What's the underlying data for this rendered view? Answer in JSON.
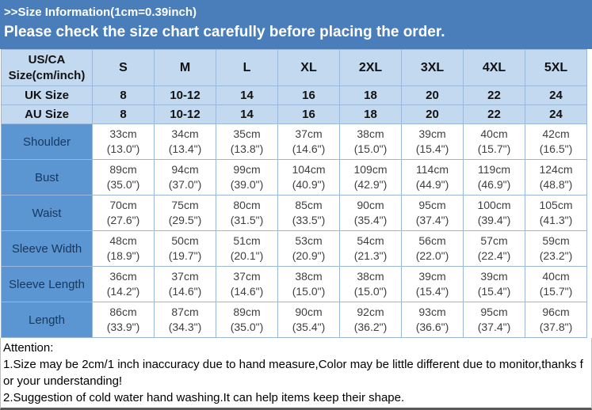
{
  "banner": {
    "title": ">>Size Information(1cm=0.39inch)",
    "subtitle": "Please check the size chart carefully before placing the order."
  },
  "table": {
    "corner": {
      "line1": "US/CA",
      "line2": "Size(cm/inch)"
    },
    "size_columns": [
      "S",
      "M",
      "L",
      "XL",
      "2XL",
      "3XL",
      "4XL",
      "5XL"
    ],
    "conversion_rows": [
      {
        "label": "UK Size",
        "values": [
          "8",
          "10-12",
          "14",
          "16",
          "18",
          "20",
          "22",
          "24"
        ]
      },
      {
        "label": "AU Size",
        "values": [
          "8",
          "10-12",
          "14",
          "16",
          "18",
          "20",
          "22",
          "24"
        ]
      }
    ],
    "measurement_rows": [
      {
        "label": "Shoulder",
        "cells": [
          {
            "cm": "33cm",
            "in": "(13.0\")"
          },
          {
            "cm": "34cm",
            "in": "(13.4\")"
          },
          {
            "cm": "35cm",
            "in": "(13.8\")"
          },
          {
            "cm": "37cm",
            "in": "(14.6\")"
          },
          {
            "cm": "38cm",
            "in": "(15.0\")"
          },
          {
            "cm": "39cm",
            "in": "(15.4\")"
          },
          {
            "cm": "40cm",
            "in": "(15.7\")"
          },
          {
            "cm": "42cm",
            "in": "(16.5\")"
          }
        ]
      },
      {
        "label": "Bust",
        "cells": [
          {
            "cm": "89cm",
            "in": "(35.0\")"
          },
          {
            "cm": "94cm",
            "in": "(37.0\")"
          },
          {
            "cm": "99cm",
            "in": "(39.0\")"
          },
          {
            "cm": "104cm",
            "in": "(40.9\")"
          },
          {
            "cm": "109cm",
            "in": "(42.9\")"
          },
          {
            "cm": "114cm",
            "in": "(44.9\")"
          },
          {
            "cm": "119cm",
            "in": "(46.9\")"
          },
          {
            "cm": "124cm",
            "in": "(48.8\")"
          }
        ]
      },
      {
        "label": "Waist",
        "cells": [
          {
            "cm": "70cm",
            "in": "(27.6\")"
          },
          {
            "cm": "75cm",
            "in": "(29.5\")"
          },
          {
            "cm": "80cm",
            "in": "(31.5\")"
          },
          {
            "cm": "85cm",
            "in": "(33.5\")"
          },
          {
            "cm": "90cm",
            "in": "(35.4\")"
          },
          {
            "cm": "95cm",
            "in": "(37.4\")"
          },
          {
            "cm": "100cm",
            "in": "(39.4\")"
          },
          {
            "cm": "105cm",
            "in": "(41.3\")"
          }
        ]
      },
      {
        "label": "Sleeve Width",
        "cells": [
          {
            "cm": "48cm",
            "in": "(18.9\")"
          },
          {
            "cm": "50cm",
            "in": "(19.7\")"
          },
          {
            "cm": "51cm",
            "in": "(20.1\")"
          },
          {
            "cm": "53cm",
            "in": "(20.9\")"
          },
          {
            "cm": "54cm",
            "in": "(21.3\")"
          },
          {
            "cm": "56cm",
            "in": "(22.0\")"
          },
          {
            "cm": "57cm",
            "in": "(22.4\")"
          },
          {
            "cm": "59cm",
            "in": "(23.2\")"
          }
        ]
      },
      {
        "label": "Sleeve Length",
        "cells": [
          {
            "cm": "36cm",
            "in": "(14.2\")"
          },
          {
            "cm": "37cm",
            "in": "(14.6\")"
          },
          {
            "cm": "37cm",
            "in": "(14.6\")"
          },
          {
            "cm": "38cm",
            "in": "(15.0\")"
          },
          {
            "cm": "38cm",
            "in": "(15.0\")"
          },
          {
            "cm": "39cm",
            "in": "(15.4\")"
          },
          {
            "cm": "39cm",
            "in": "(15.4\")"
          },
          {
            "cm": "40cm",
            "in": "(15.7\")"
          }
        ]
      },
      {
        "label": "Length",
        "cells": [
          {
            "cm": "86cm",
            "in": "(33.9\")"
          },
          {
            "cm": "87cm",
            "in": "(34.3\")"
          },
          {
            "cm": "89cm",
            "in": "(35.0\")"
          },
          {
            "cm": "90cm",
            "in": "(35.4\")"
          },
          {
            "cm": "92cm",
            "in": "(36.2\")"
          },
          {
            "cm": "93cm",
            "in": "(36.6\")"
          },
          {
            "cm": "95cm",
            "in": "(37.4\")"
          },
          {
            "cm": "96cm",
            "in": "(37.8\")"
          }
        ]
      }
    ]
  },
  "attention": {
    "heading": "Attention:",
    "notes": [
      "1.Size may be 2cm/1 inch inaccuracy due to hand measure,Color may be little different due to monitor,thanks for your understanding!",
      "2.Suggestion of cold water hand washing.It can help items keep their shape."
    ]
  },
  "colors": {
    "banner_bg": "#4a7ebb",
    "header_bg": "#c3d9f0",
    "row_label_bg": "#5b96d2",
    "row_label_text": "#17375d",
    "grid_line": "#9bb7da",
    "cell_text": "#3f3f3f",
    "bottom_rule": "#595959"
  }
}
